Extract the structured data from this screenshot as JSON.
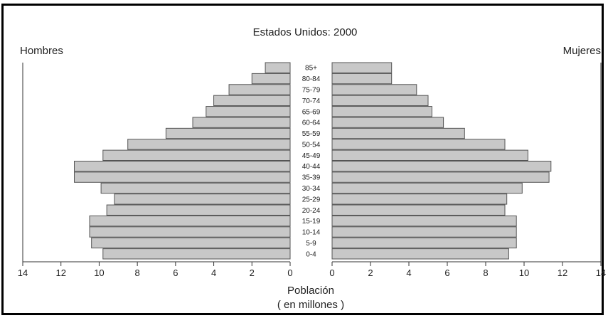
{
  "chart_data": {
    "type": "bar",
    "title": "Estados Unidos: 2000",
    "left_label": "Hombres",
    "right_label": "Mujeres",
    "xlabel_line1": "Población",
    "xlabel_line2": "( en millones )",
    "xlim": [
      0,
      14
    ],
    "xticks": [
      "0",
      "2",
      "4",
      "6",
      "8",
      "10",
      "12",
      "14"
    ],
    "categories": [
      "85+",
      "80-84",
      "75-79",
      "70-74",
      "65-69",
      "60-64",
      "55-59",
      "50-54",
      "45-49",
      "40-44",
      "35-39",
      "30-34",
      "25-29",
      "20-24",
      "15-19",
      "10-14",
      "5-9",
      "0-4"
    ],
    "series": [
      {
        "name": "Hombres",
        "values": [
          1.3,
          2.0,
          3.2,
          4.0,
          4.4,
          5.1,
          6.5,
          8.5,
          9.8,
          11.3,
          11.3,
          9.9,
          9.2,
          9.6,
          10.5,
          10.5,
          10.4,
          9.8
        ]
      },
      {
        "name": "Mujeres",
        "values": [
          3.1,
          3.1,
          4.4,
          5.0,
          5.2,
          5.8,
          6.9,
          9.0,
          10.2,
          11.4,
          11.3,
          9.9,
          9.1,
          9.0,
          9.6,
          9.6,
          9.6,
          9.2
        ]
      }
    ],
    "bar_color": "#c8c8c8"
  }
}
